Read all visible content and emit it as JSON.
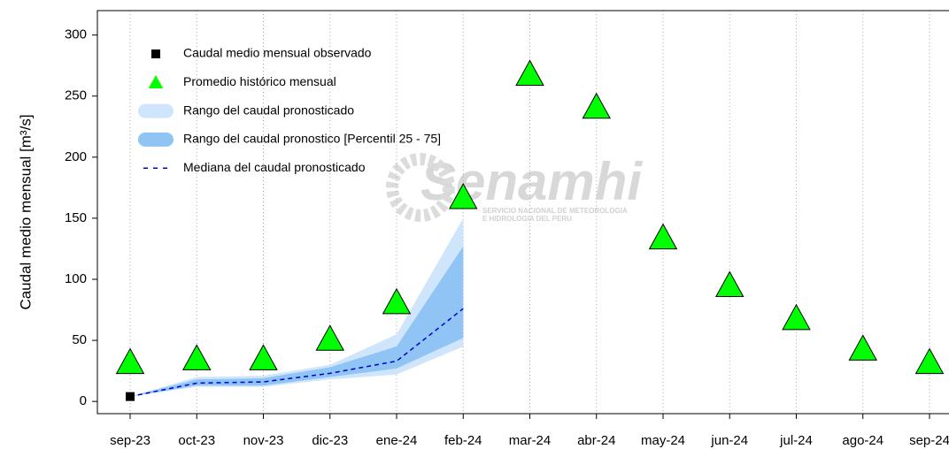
{
  "chart_data": {
    "type": "line",
    "y_label": "Caudal medio mensual  [m³/s]",
    "watermark": "Senamhi",
    "watermark_sub": [
      "SERVICIO NACIONAL DE METEOROLOGIA",
      "E HIDROLOGIA DEL PERU"
    ],
    "categories": [
      "sep-23",
      "oct-23",
      "nov-23",
      "dic-23",
      "ene-24",
      "feb-24",
      "mar-24",
      "abr-24",
      "may-24",
      "jun-24",
      "jul-24",
      "ago-24",
      "sep-24"
    ],
    "ylim": [
      -10,
      320
    ],
    "yticks": [
      0,
      50,
      100,
      150,
      200,
      250,
      300
    ],
    "grid": "x-dotted",
    "legend": "upper-left",
    "series": [
      {
        "name": "Caudal medio mensual observado",
        "kind": "square",
        "color": "#000000",
        "values": [
          4,
          null,
          null,
          null,
          null,
          null,
          null,
          null,
          null,
          null,
          null,
          null,
          null
        ]
      },
      {
        "name": "Promedio histórico mensual",
        "kind": "triangle",
        "color": "#00ff00",
        "values": [
          32,
          35,
          35,
          51,
          81,
          167,
          268,
          241,
          134,
          95,
          68,
          43,
          32
        ]
      },
      {
        "name": "Rango del caudal pronosticado",
        "kind": "band",
        "color": "#cfe5fb",
        "lower": [
          4,
          12,
          12,
          18,
          22,
          45,
          null,
          null,
          null,
          null,
          null,
          null,
          null
        ],
        "upper": [
          4,
          20,
          21,
          30,
          55,
          150,
          null,
          null,
          null,
          null,
          null,
          null,
          null
        ]
      },
      {
        "name": "Rango del caudal pronostico [Percentil 25 - 75]",
        "kind": "band",
        "color": "#8fc4f5",
        "lower": [
          4,
          13,
          13,
          20,
          27,
          52,
          null,
          null,
          null,
          null,
          null,
          null,
          null
        ],
        "upper": [
          4,
          18,
          19,
          28,
          45,
          127,
          null,
          null,
          null,
          null,
          null,
          null,
          null
        ]
      },
      {
        "name": "Mediana del caudal pronosticado",
        "kind": "dashed",
        "color": "#0000cc",
        "values": [
          4,
          15,
          16,
          23,
          33,
          76,
          null,
          null,
          null,
          null,
          null,
          null,
          null
        ]
      }
    ]
  }
}
